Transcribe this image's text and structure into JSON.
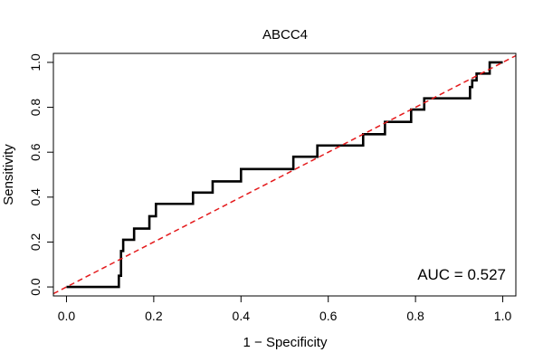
{
  "chart_data": {
    "type": "line",
    "title": "ABCC4",
    "xlabel": "1 − Specificity",
    "ylabel": "Sensitivity",
    "xlim": [
      -0.03,
      1.03
    ],
    "ylim": [
      -0.04,
      1.04
    ],
    "xticks": [
      0.0,
      0.2,
      0.4,
      0.6,
      0.8,
      1.0
    ],
    "xtick_labels": [
      "0.0",
      "0.2",
      "0.4",
      "0.6",
      "0.8",
      "1.0"
    ],
    "yticks": [
      0.0,
      0.2,
      0.4,
      0.6,
      0.8,
      1.0
    ],
    "ytick_labels": [
      "0.0",
      "0.2",
      "0.4",
      "0.6",
      "0.8",
      "1.0"
    ],
    "grid": false,
    "annotation": "AUC = 0.527",
    "series": [
      {
        "color": "#000000",
        "style": "solid-step",
        "x": [
          0.0,
          0.12,
          0.12,
          0.125,
          0.125,
          0.13,
          0.13,
          0.155,
          0.155,
          0.19,
          0.19,
          0.205,
          0.205,
          0.29,
          0.29,
          0.335,
          0.335,
          0.4,
          0.4,
          0.52,
          0.52,
          0.575,
          0.575,
          0.68,
          0.68,
          0.73,
          0.73,
          0.79,
          0.79,
          0.82,
          0.82,
          0.925,
          0.925,
          0.93,
          0.93,
          0.94,
          0.94,
          0.97,
          0.97,
          1.0
        ],
        "y": [
          0.0,
          0.0,
          0.05,
          0.05,
          0.16,
          0.16,
          0.21,
          0.21,
          0.26,
          0.26,
          0.315,
          0.315,
          0.37,
          0.37,
          0.42,
          0.42,
          0.47,
          0.47,
          0.525,
          0.525,
          0.58,
          0.58,
          0.63,
          0.63,
          0.68,
          0.68,
          0.735,
          0.735,
          0.79,
          0.79,
          0.84,
          0.84,
          0.89,
          0.89,
          0.92,
          0.92,
          0.95,
          0.95,
          1.0,
          1.0
        ]
      },
      {
        "color": "#e41a1c",
        "style": "dashed",
        "x": [
          -0.03,
          1.03
        ],
        "y": [
          -0.03,
          1.03
        ]
      }
    ]
  }
}
